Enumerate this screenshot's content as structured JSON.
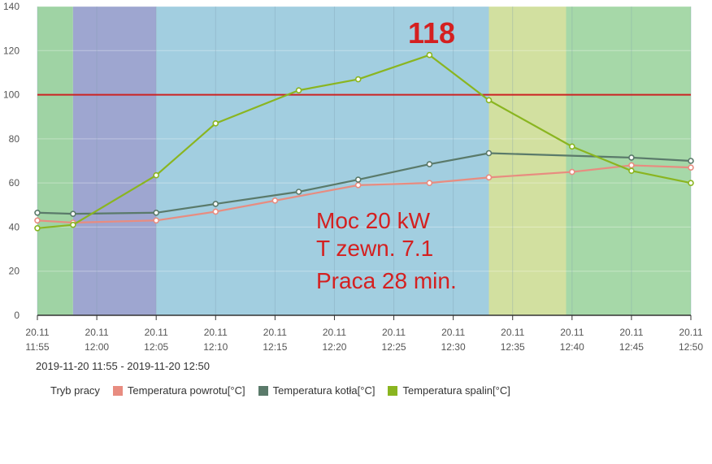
{
  "chart_data": {
    "type": "line",
    "x": [
      "20.11 11:55",
      "20.11 12:00",
      "20.11 12:05",
      "20.11 12:10",
      "20.11 12:15",
      "20.11 12:20",
      "20.11 12:25",
      "20.11 12:30",
      "20.11 12:35",
      "20.11 12:40",
      "20.11 12:45",
      "20.11 12:50"
    ],
    "x_ticks": [
      {
        "date": "20.11",
        "time": "11:55"
      },
      {
        "date": "20.11",
        "time": "12:00"
      },
      {
        "date": "20.11",
        "time": "12:05"
      },
      {
        "date": "20.11",
        "time": "12:10"
      },
      {
        "date": "20.11",
        "time": "12:15"
      },
      {
        "date": "20.11",
        "time": "12:20"
      },
      {
        "date": "20.11",
        "time": "12:25"
      },
      {
        "date": "20.11",
        "time": "12:30"
      },
      {
        "date": "20.11",
        "time": "12:35"
      },
      {
        "date": "20.11",
        "time": "12:40"
      },
      {
        "date": "20.11",
        "time": "12:45"
      },
      {
        "date": "20.11",
        "time": "12:50"
      }
    ],
    "y_ticks": [
      0,
      20,
      40,
      60,
      80,
      100,
      120,
      140
    ],
    "ylim": [
      0,
      140
    ],
    "xlim": [
      "11:55",
      "12:50"
    ],
    "grid": true,
    "legend_placement": "bottom-left",
    "bands": [
      {
        "from": "11:55",
        "to": "11:58",
        "color": "#9fd3a4"
      },
      {
        "from": "11:58",
        "to": "12:05",
        "color": "#9ea6d0"
      },
      {
        "from": "12:05",
        "to": "12:33",
        "color": "#a2cee0"
      },
      {
        "from": "12:33",
        "to": "12:39.5",
        "color": "#d2e0a0"
      },
      {
        "from": "12:39.5",
        "to": "12:50",
        "color": "#a6d8a8"
      }
    ],
    "reference_line": {
      "y": 100,
      "color": "#cc2222"
    },
    "series": [
      {
        "name": "Temperatura powrotu[°C]",
        "color": "#e88c80",
        "points": [
          [
            "11:55",
            43
          ],
          [
            "11:58",
            42
          ],
          [
            "12:05",
            43
          ],
          [
            "12:10",
            47
          ],
          [
            "12:15",
            52
          ],
          [
            "12:22",
            59
          ],
          [
            "12:28",
            60
          ],
          [
            "12:33",
            62.5
          ],
          [
            "12:40",
            65
          ],
          [
            "12:45",
            68
          ],
          [
            "12:50",
            67
          ]
        ]
      },
      {
        "name": "Temperatura kotła[°C]",
        "color": "#5a7a6a",
        "points": [
          [
            "11:55",
            46.5
          ],
          [
            "11:58",
            46
          ],
          [
            "12:05",
            46.5
          ],
          [
            "12:10",
            50.5
          ],
          [
            "12:17",
            56
          ],
          [
            "12:22",
            61.5
          ],
          [
            "12:28",
            68.5
          ],
          [
            "12:33",
            73.5
          ],
          [
            "12:45",
            71.5
          ],
          [
            "12:50",
            70
          ]
        ]
      },
      {
        "name": "Temperatura spalin[°C]",
        "color": "#8ab520",
        "points": [
          [
            "11:55",
            39.5
          ],
          [
            "11:58",
            41
          ],
          [
            "12:05",
            63.5
          ],
          [
            "12:10",
            87
          ],
          [
            "12:17",
            102
          ],
          [
            "12:22",
            107
          ],
          [
            "12:28",
            118
          ],
          [
            "12:33",
            97.5
          ],
          [
            "12:40",
            76.5
          ],
          [
            "12:45",
            65.5
          ],
          [
            "12:50",
            60
          ]
        ]
      }
    ],
    "legend_label": "Tryb pracy",
    "annotations": {
      "peak": "118",
      "lines": [
        "Moc 20 kW",
        "T zewn. 7.1",
        "Praca 28 min."
      ]
    }
  },
  "date_range": "2019-11-20 11:55 - 2019-11-20 12:50",
  "legend": {
    "mode_label": "Tryb pracy",
    "items": [
      {
        "label": "Temperatura powrotu[°C]",
        "color": "#e88c80"
      },
      {
        "label": "Temperatura kotła[°C]",
        "color": "#5a7a6a"
      },
      {
        "label": "Temperatura spalin[°C]",
        "color": "#8ab520"
      }
    ]
  }
}
